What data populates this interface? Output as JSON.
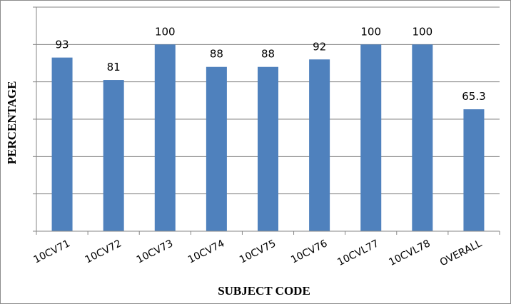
{
  "chart_data": {
    "type": "bar",
    "categories": [
      "10CV71",
      "10CV72",
      "10CV73",
      "10CV74",
      "10CV75",
      "10CV76",
      "10CVL77",
      "10CVL78",
      "OVERALL"
    ],
    "values": [
      93,
      81,
      100,
      88,
      88,
      92,
      100,
      100,
      65.3
    ],
    "data_labels": [
      "93",
      "81",
      "100",
      "88",
      "88",
      "92",
      "100",
      "100",
      "65.3"
    ],
    "xlabel": "SUBJECT CODE",
    "ylabel": "PERCENTAGE",
    "ylim": [
      0,
      120
    ],
    "y_tick_labels_shown": false,
    "grid": true,
    "legend": "none",
    "bar_color": "#4f81bd"
  }
}
